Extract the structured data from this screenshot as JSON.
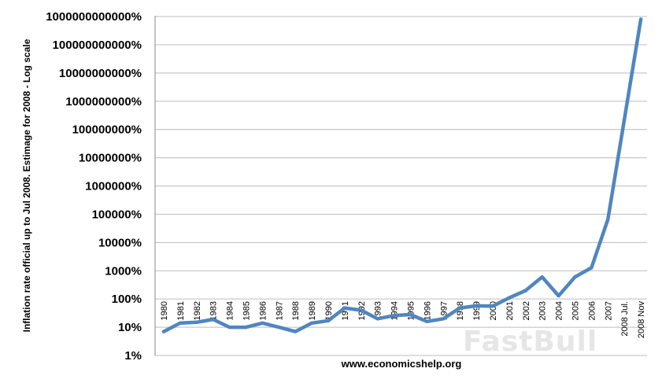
{
  "chart_data": {
    "type": "line",
    "ylabel": "Inflation rate official up to Jul 2008. Estimage for 2008 - Log scale",
    "source": "www.economicshelp.org",
    "watermark": "FastBull",
    "yscale": "log",
    "ylim": [
      1,
      1000000000000
    ],
    "yticks": [
      {
        "value": 1,
        "label": "1%"
      },
      {
        "value": 10,
        "label": "10%"
      },
      {
        "value": 100,
        "label": "100%"
      },
      {
        "value": 1000,
        "label": "1000%"
      },
      {
        "value": 10000,
        "label": "10000%"
      },
      {
        "value": 100000,
        "label": "100000%"
      },
      {
        "value": 1000000,
        "label": "1000000%"
      },
      {
        "value": 10000000,
        "label": "10000000%"
      },
      {
        "value": 100000000,
        "label": "100000000%"
      },
      {
        "value": 1000000000,
        "label": "1000000000%"
      },
      {
        "value": 10000000000,
        "label": "10000000000%"
      },
      {
        "value": 100000000000,
        "label": "100000000000%"
      },
      {
        "value": 1000000000000,
        "label": "1000000000000%"
      }
    ],
    "grid": true,
    "line_color": "#4f86c0",
    "categories": [
      "1980",
      "1981",
      "1982",
      "1983",
      "1984",
      "1985",
      "1986",
      "1987",
      "1988",
      "1989",
      "1990",
      "1991",
      "1992",
      "1993",
      "1994",
      "1995",
      "1996",
      "1997",
      "1998",
      "1999",
      "2000",
      "2001",
      "2002",
      "2003",
      "2004",
      "2005",
      "2006",
      "2007",
      "2008 Jul.",
      "2008 Nov"
    ],
    "series": [
      {
        "values": [
          7,
          14,
          15,
          19,
          10,
          10,
          14,
          10,
          7,
          14,
          17,
          48,
          40,
          20,
          26,
          28,
          16,
          20,
          48,
          57,
          56,
          110,
          200,
          600,
          130,
          600,
          1280,
          66000,
          230000000,
          800000000000
        ]
      }
    ]
  }
}
